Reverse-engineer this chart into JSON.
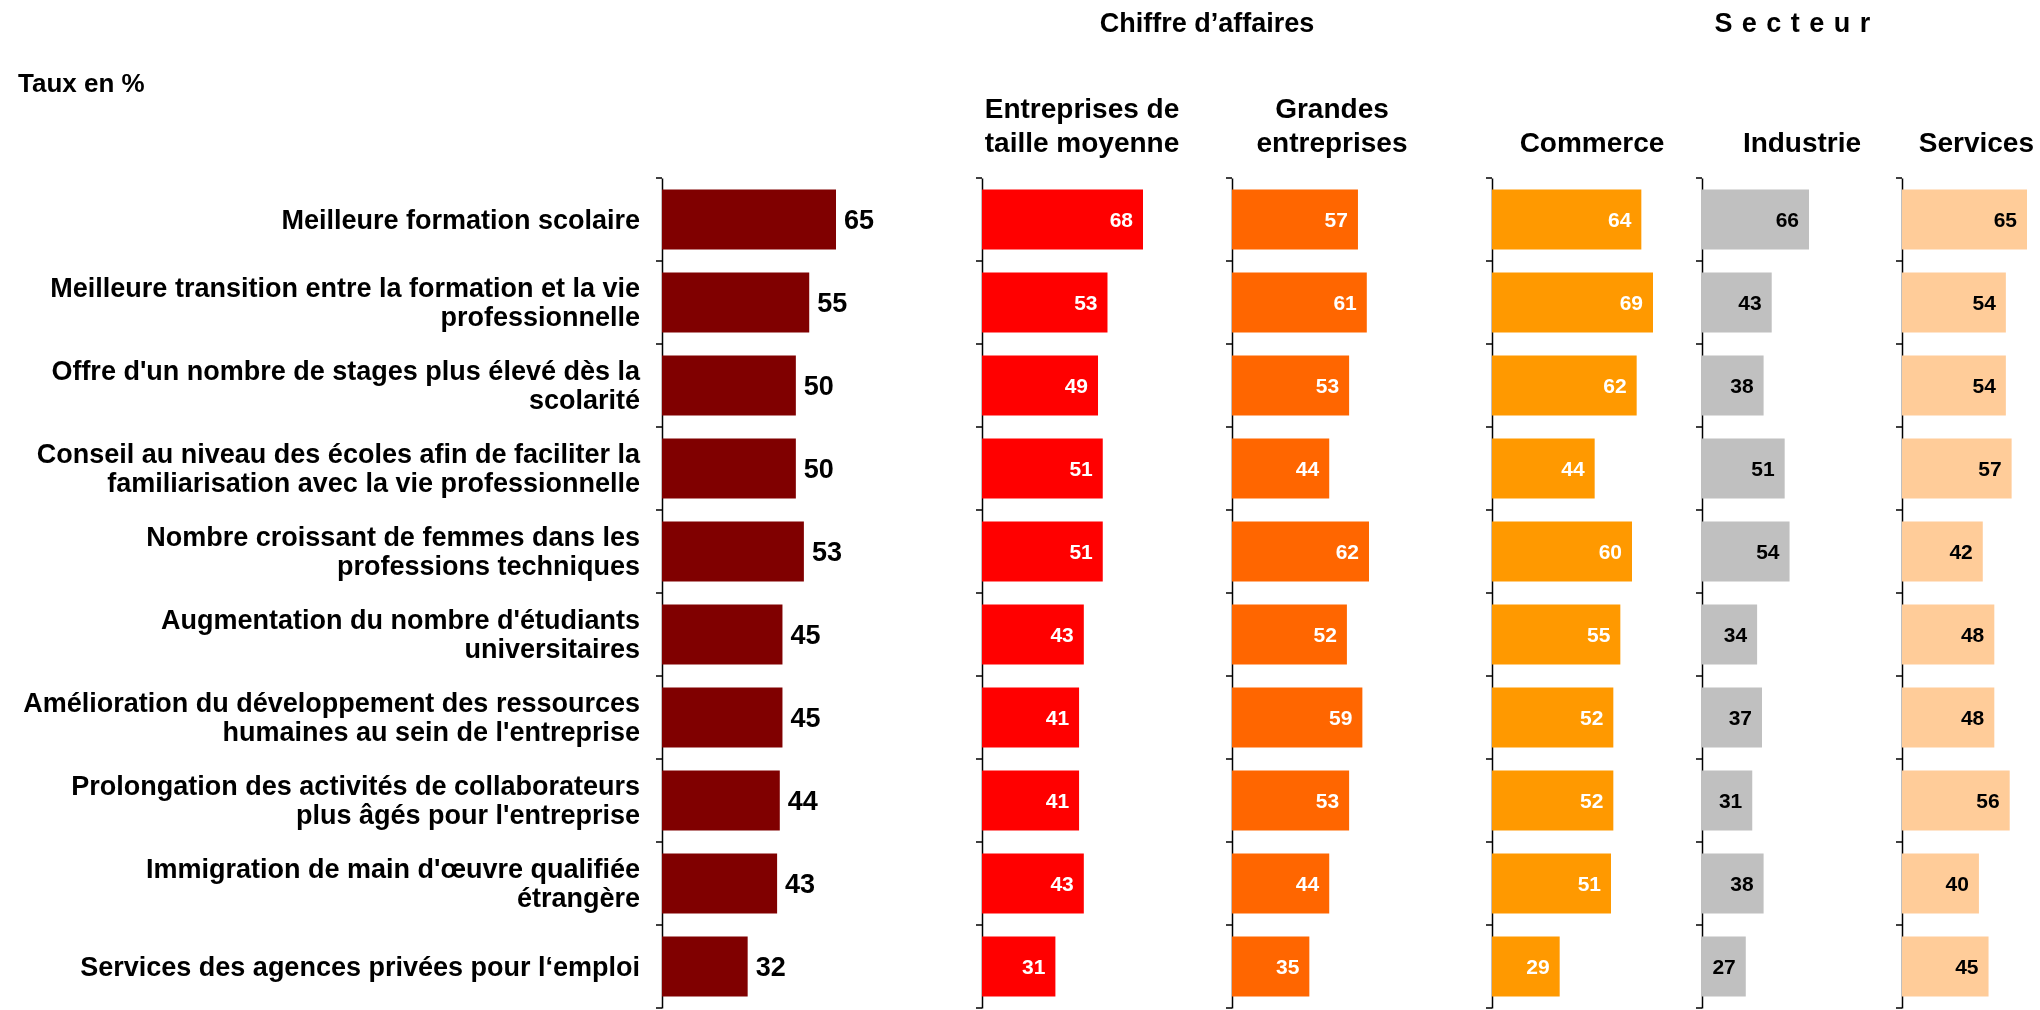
{
  "chart_data": [
    {
      "type": "bar",
      "orientation": "horizontal",
      "color": "#800000",
      "data_labels": true,
      "annotations": [
        "Taux en %"
      ],
      "categories": [
        "Meilleure formation scolaire",
        "Meilleure transition entre la formation et la vie professionnelle",
        "Offre d'un nombre de stages plus élevé dès la scolarité",
        "Conseil au niveau des écoles afin de faciliter la familiarisation avec la vie professionnelle",
        "Nombre croissant de femmes dans les professions techniques",
        "Augmentation du nombre d'étudiants universitaires",
        "Amélioration du développement des ressources humaines au sein de l'entreprise",
        "Prolongation des activités de collaborateurs plus âgés pour l'entreprise",
        "Immigration de main d'œuvre qualifiée étrangère",
        "Services des agences privées pour l‘emploi"
      ],
      "values": [
        65,
        55,
        50,
        50,
        53,
        45,
        45,
        44,
        43,
        32
      ]
    },
    {
      "type": "bar",
      "orientation": "horizontal",
      "title": "Entreprises de taille moyenne",
      "color": "#ff0000",
      "data_labels": true,
      "tick_labels": false,
      "annotations": [
        "Chiffre d’affaires"
      ],
      "categories": [
        null,
        null,
        null,
        null,
        null,
        null,
        null,
        null,
        null,
        null
      ],
      "values": [
        68,
        53,
        49,
        51,
        51,
        43,
        41,
        41,
        43,
        31
      ]
    },
    {
      "type": "bar",
      "orientation": "horizontal",
      "title": "Grandes entreprises",
      "color": "#ff6600",
      "data_labels": true,
      "tick_labels": false,
      "categories": [
        null,
        null,
        null,
        null,
        null,
        null,
        null,
        null,
        null,
        null
      ],
      "values": [
        57,
        61,
        53,
        44,
        62,
        52,
        59,
        53,
        44,
        35
      ]
    },
    {
      "type": "bar",
      "orientation": "horizontal",
      "title": "Commerce",
      "color": "#ff9900",
      "data_labels": true,
      "tick_labels": false,
      "annotations": [
        "Secteur"
      ],
      "categories": [
        null,
        null,
        null,
        null,
        null,
        null,
        null,
        null,
        null,
        null
      ],
      "values": [
        64,
        69,
        62,
        44,
        60,
        55,
        52,
        52,
        51,
        29
      ]
    },
    {
      "type": "bar",
      "orientation": "horizontal",
      "title": "Industrie",
      "color": "#c0c0c0",
      "data_labels": true,
      "tick_labels": false,
      "categories": [
        null,
        null,
        null,
        null,
        null,
        null,
        null,
        null,
        null,
        null
      ],
      "values": [
        66,
        43,
        38,
        51,
        54,
        34,
        37,
        31,
        38,
        27
      ]
    },
    {
      "type": "bar",
      "orientation": "horizontal",
      "title": "Services",
      "color": "#ffcc99",
      "data_labels": true,
      "tick_labels": false,
      "categories": [
        null,
        null,
        null,
        null,
        null,
        null,
        null,
        null,
        null,
        null
      ],
      "values": [
        65,
        54,
        54,
        57,
        42,
        48,
        48,
        56,
        40,
        45
      ]
    }
  ]
}
